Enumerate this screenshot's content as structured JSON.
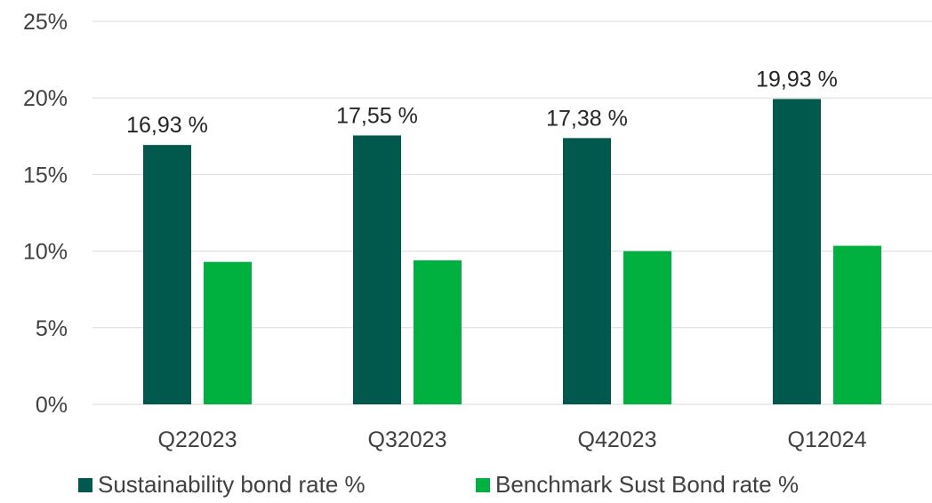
{
  "chart_data": {
    "type": "bar",
    "title": "",
    "xlabel": "",
    "ylabel": "",
    "categories": [
      "Q22023",
      "Q32023",
      "Q42023",
      "Q12024"
    ],
    "series": [
      {
        "name": "Sustainability bond rate %",
        "values": [
          16.93,
          17.55,
          17.38,
          19.93
        ],
        "data_labels": [
          "16,93 %",
          "17,55 %",
          "17,38 %",
          "19,93 %"
        ],
        "color": "#00594C"
      },
      {
        "name": "Benchmark Sust Bond rate %",
        "values": [
          9.3,
          9.4,
          10.0,
          10.35
        ],
        "data_labels": [],
        "color": "#00B140"
      }
    ],
    "ylim": [
      0,
      25
    ],
    "yticks": [
      0,
      5,
      10,
      15,
      20,
      25
    ],
    "ytick_labels": [
      "0%",
      "5%",
      "10%",
      "15%",
      "20%",
      "25%"
    ],
    "grid": true,
    "legend_position": "bottom"
  }
}
